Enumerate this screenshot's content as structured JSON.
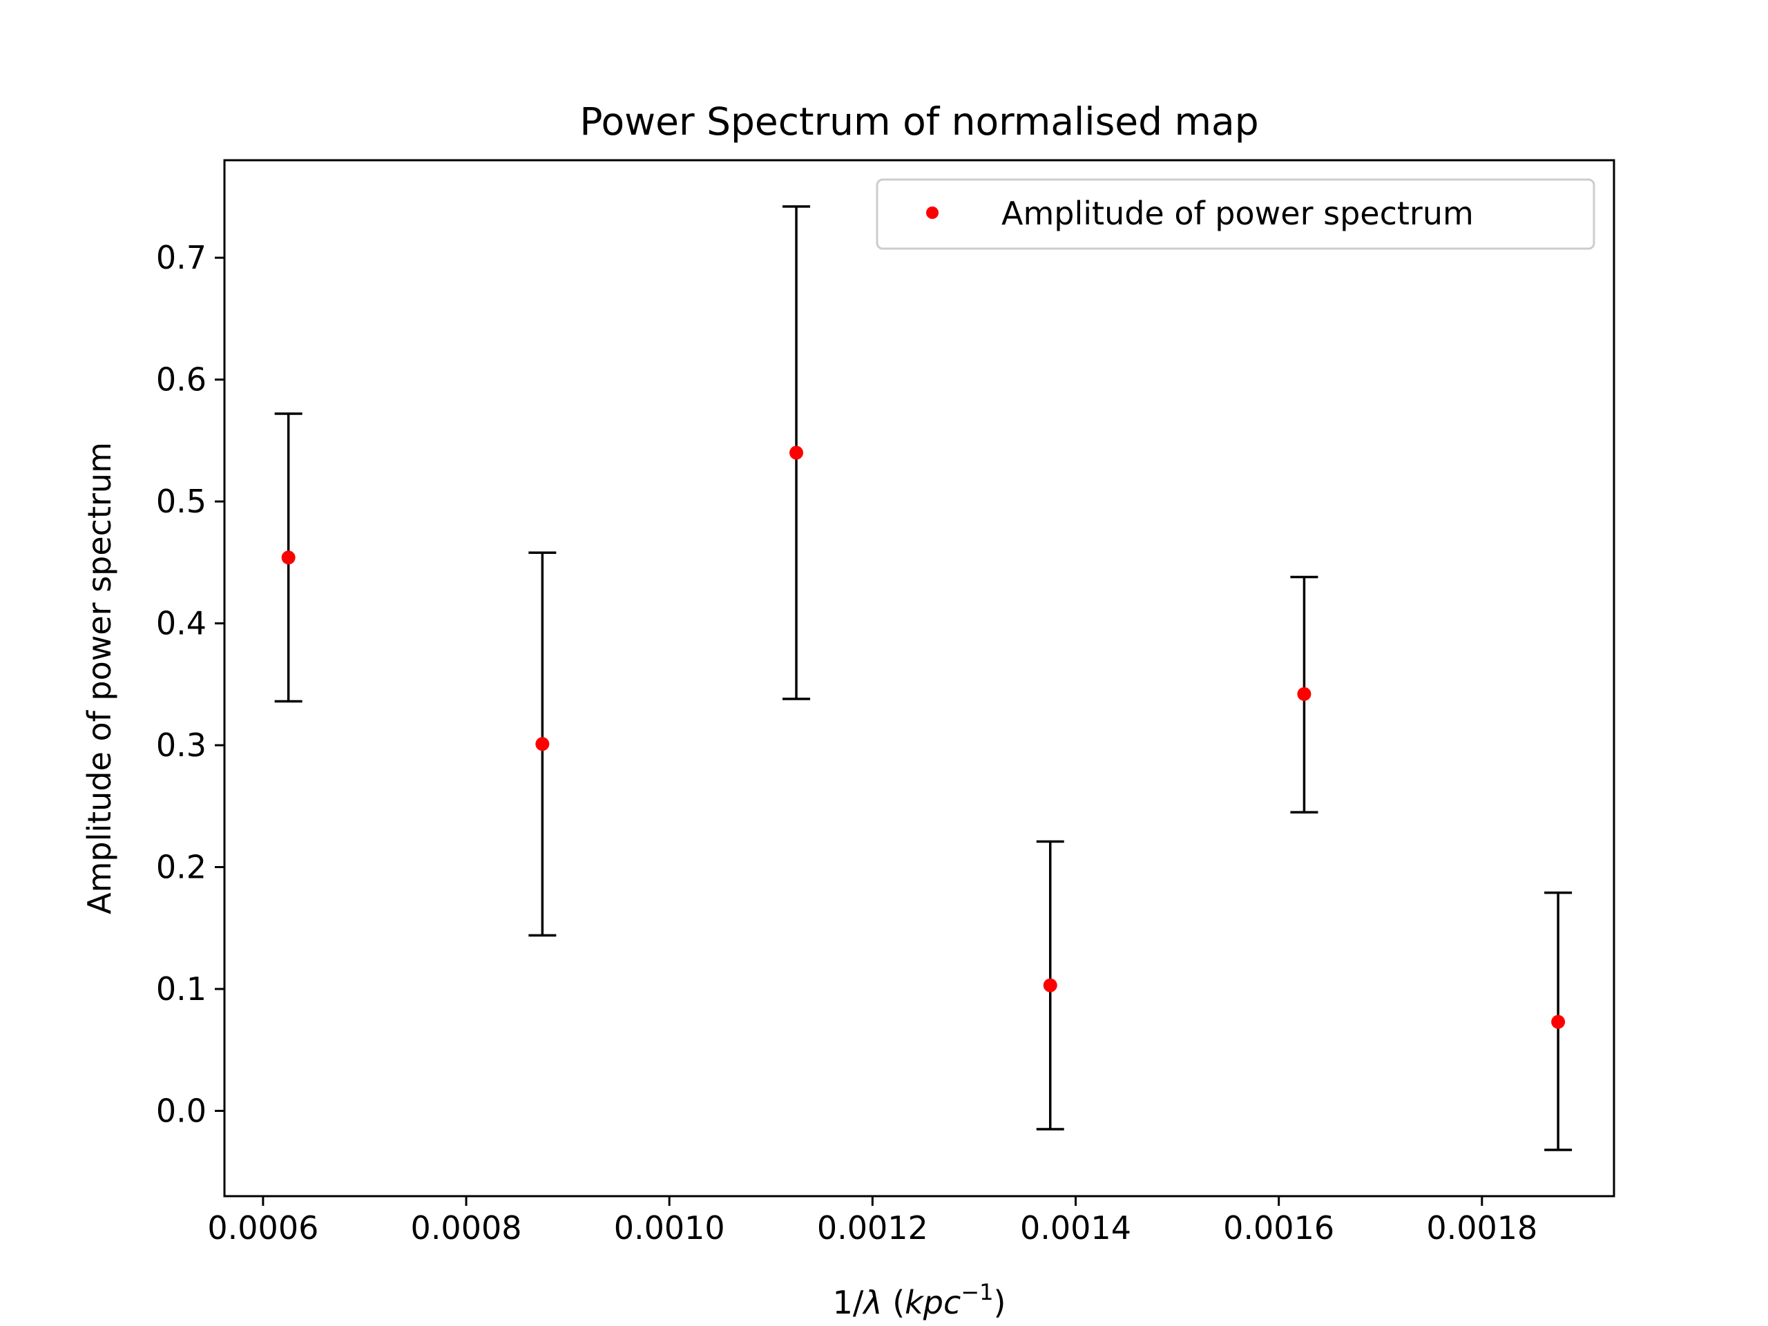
{
  "chart_data": {
    "type": "scatter",
    "title": "Power Spectrum of normalised map",
    "xlabel_parts": [
      "1/",
      "λ",
      " (",
      "kpc",
      "−1",
      ")"
    ],
    "ylabel": "Amplitude of power spectrum",
    "xlim": [
      0.000562,
      0.00193
    ],
    "ylim": [
      -0.07,
      0.78
    ],
    "xticks": [
      0.0006,
      0.0008,
      0.001,
      0.0012,
      0.0014,
      0.0016,
      0.0018
    ],
    "xtick_labels": [
      "0.0006",
      "0.0008",
      "0.0010",
      "0.0012",
      "0.0014",
      "0.0016",
      "0.0018"
    ],
    "yticks": [
      0.0,
      0.1,
      0.2,
      0.3,
      0.4,
      0.5,
      0.6,
      0.7
    ],
    "ytick_labels": [
      "0.0",
      "0.1",
      "0.2",
      "0.3",
      "0.4",
      "0.5",
      "0.6",
      "0.7"
    ],
    "grid": false,
    "legend_position": "top-right",
    "series": [
      {
        "name": "Amplitude of power spectrum",
        "color": "#ff0000",
        "marker": "dot",
        "errorbar_color": "#000000",
        "points": [
          {
            "x": 0.000625,
            "y": 0.454,
            "err_low": 0.336,
            "err_high": 0.572
          },
          {
            "x": 0.000875,
            "y": 0.301,
            "err_low": 0.144,
            "err_high": 0.458
          },
          {
            "x": 0.001125,
            "y": 0.54,
            "err_low": 0.338,
            "err_high": 0.742
          },
          {
            "x": 0.001375,
            "y": 0.103,
            "err_low": -0.015,
            "err_high": 0.221
          },
          {
            "x": 0.001625,
            "y": 0.342,
            "err_low": 0.245,
            "err_high": 0.438
          },
          {
            "x": 0.001875,
            "y": 0.073,
            "err_low": -0.032,
            "err_high": 0.179
          }
        ]
      }
    ]
  }
}
